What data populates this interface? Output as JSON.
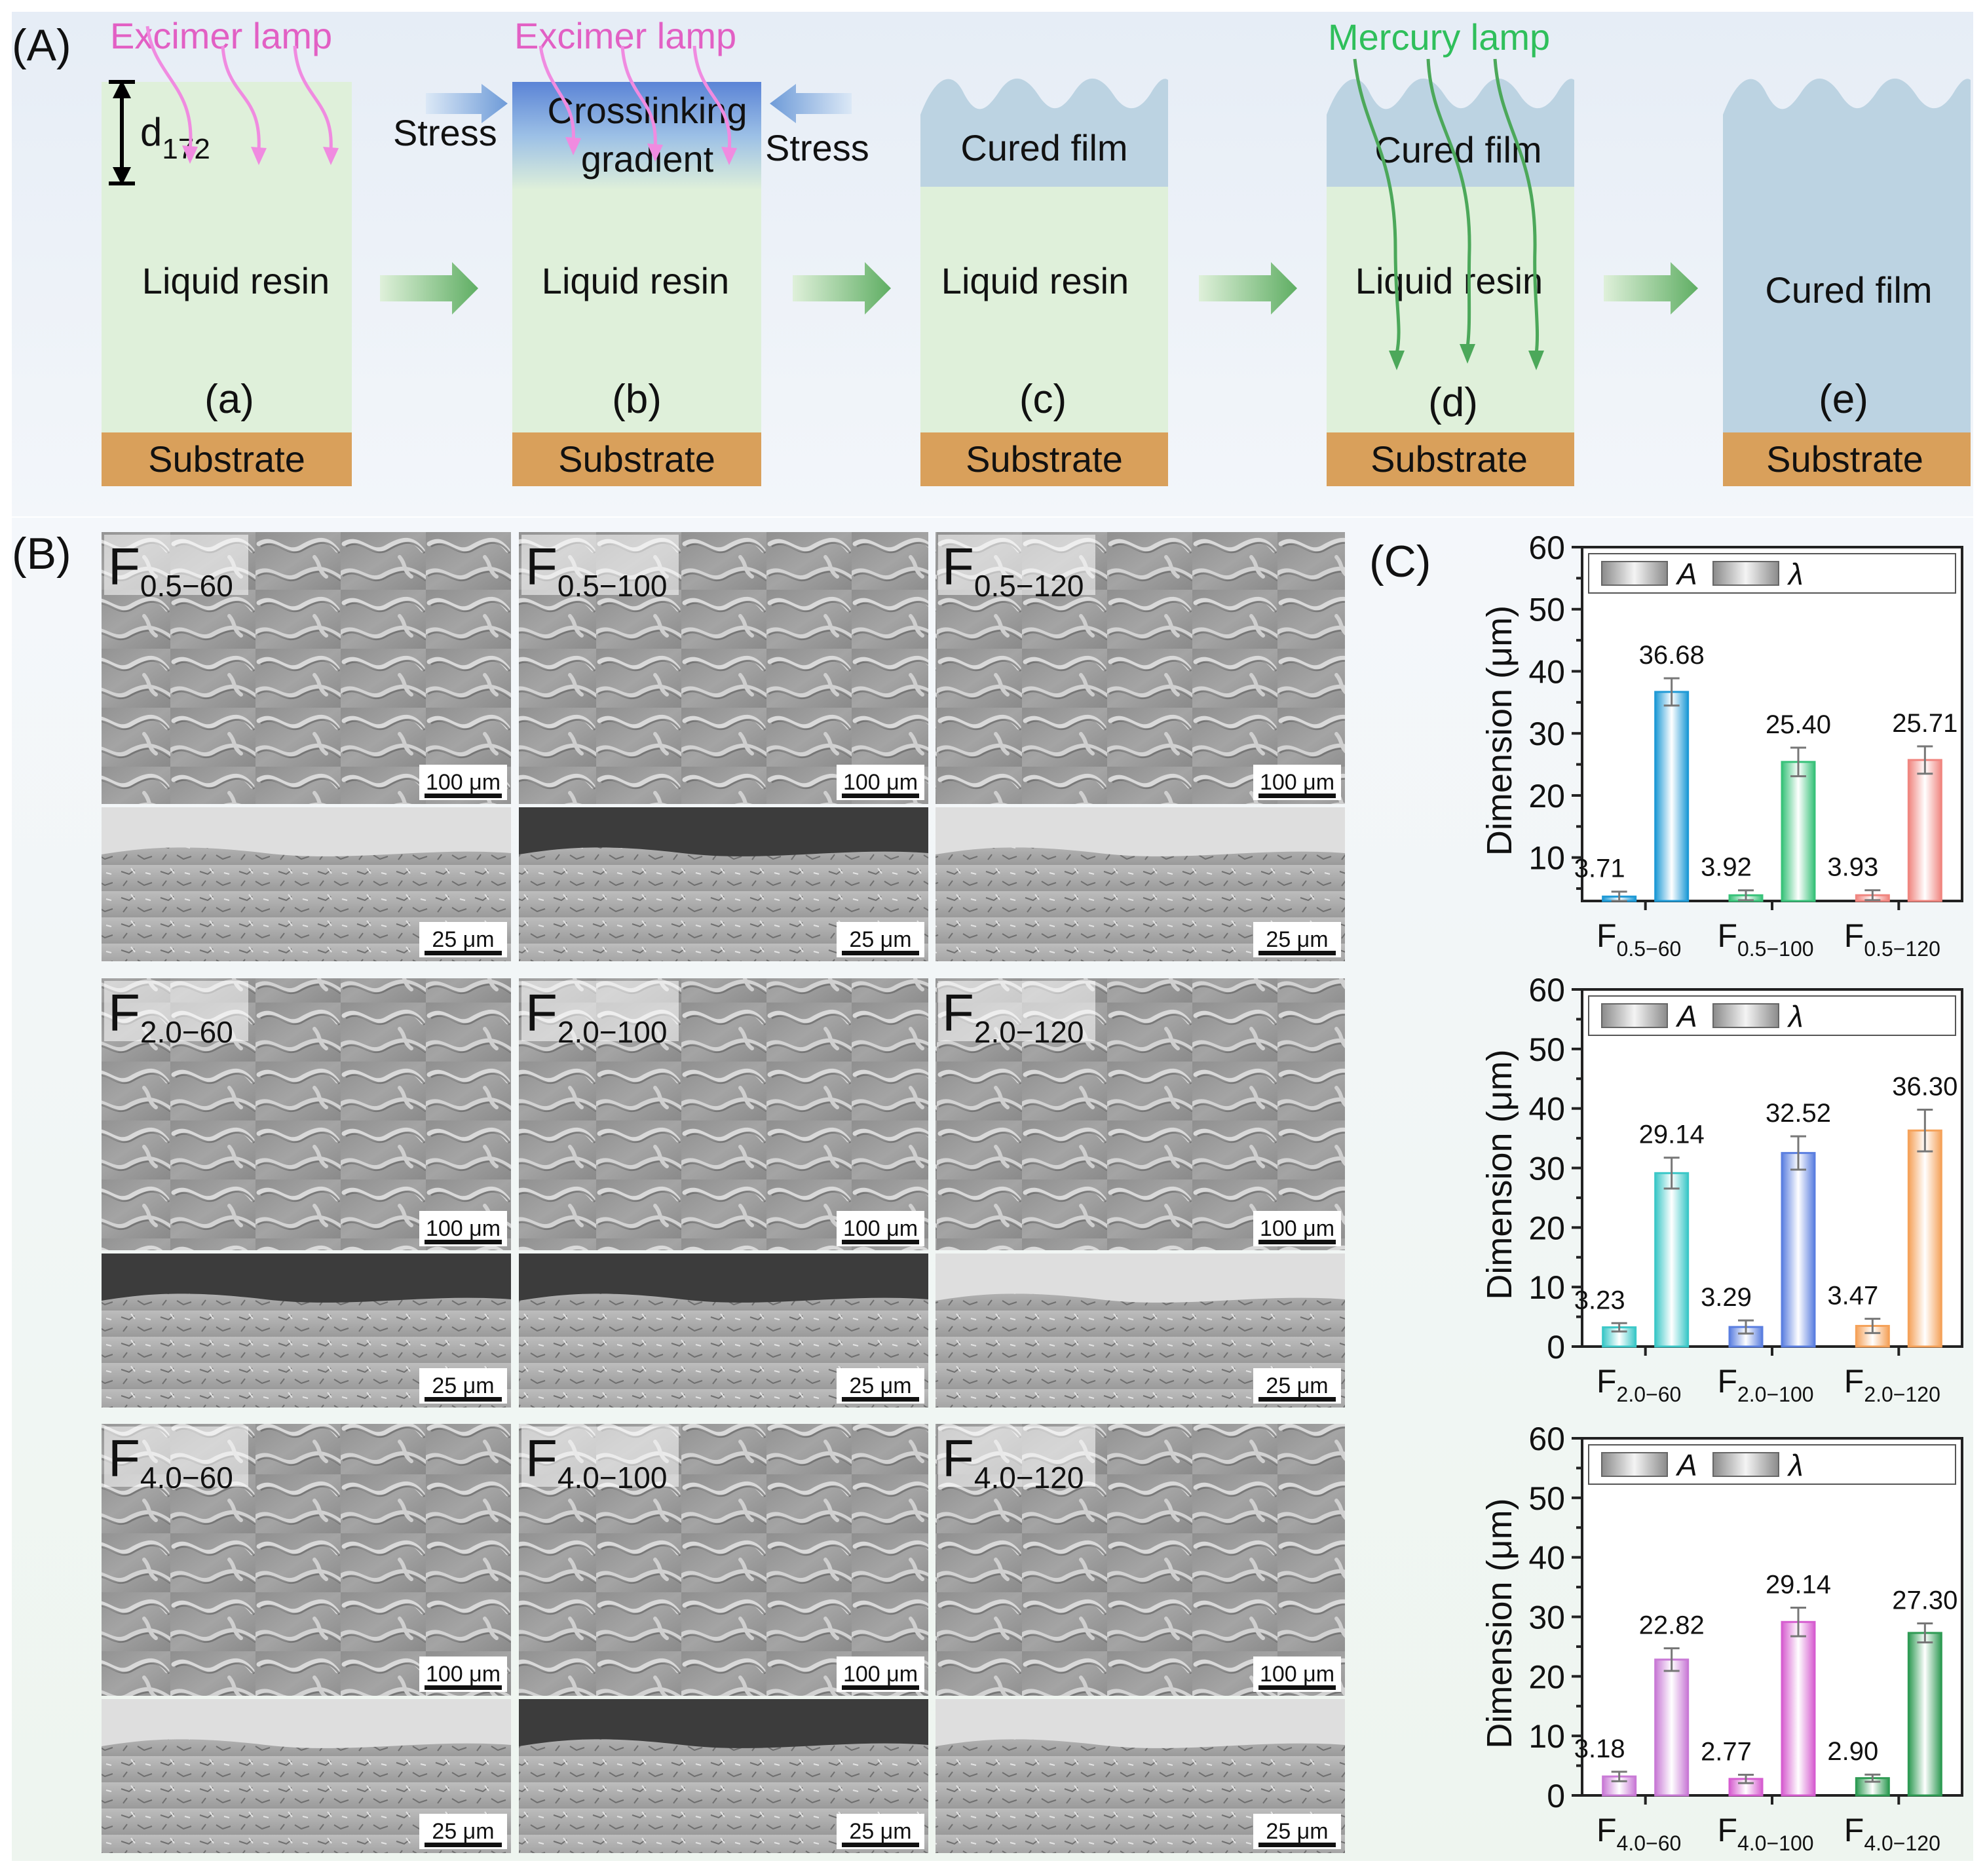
{
  "colors": {
    "liquid": "#dff0da",
    "cured": "#bcd3e2",
    "substrate": "#d9a05b",
    "excimer": "#e260c4",
    "mercury": "#2fbf5b",
    "arrow_green": "#4ca85a"
  },
  "panel_a": {
    "label": "(A)",
    "excimer_label": "Excimer lamp",
    "mercury_label": "Mercury lamp",
    "depth_label": "d",
    "depth_sub": "172",
    "stress_label": "Stress",
    "crosslink_line1": "Crosslinking",
    "crosslink_line2": "gradient",
    "liquid_resin": "Liquid resin",
    "cured_film": "Cured film",
    "substrate": "Substrate",
    "steps": [
      "(a)",
      "(b)",
      "(c)",
      "(d)",
      "(e)"
    ]
  },
  "panel_b": {
    "label": "(B)",
    "scale_top": "100 μm",
    "scale_bottom": "25 μm",
    "rows": [
      {
        "samples": [
          {
            "main": "F",
            "sub": "0.5−60"
          },
          {
            "main": "F",
            "sub": "0.5−100"
          },
          {
            "main": "F",
            "sub": "0.5−120"
          }
        ]
      },
      {
        "samples": [
          {
            "main": "F",
            "sub": "2.0−60"
          },
          {
            "main": "F",
            "sub": "2.0−100"
          },
          {
            "main": "F",
            "sub": "2.0−120"
          }
        ]
      },
      {
        "samples": [
          {
            "main": "F",
            "sub": "4.0−60"
          },
          {
            "main": "F",
            "sub": "4.0−100"
          },
          {
            "main": "F",
            "sub": "4.0−120"
          }
        ]
      }
    ]
  },
  "panel_c": {
    "label": "(C)",
    "ylabel": "Dimension (μm)",
    "legend_a": "A",
    "legend_lambda": "λ",
    "yticks": [
      "60",
      "50",
      "40",
      "30",
      "20",
      "10",
      "0"
    ]
  },
  "chart_data": [
    {
      "type": "bar",
      "title": "",
      "ylabel": "Dimension (μm)",
      "ylim": [
        3,
        60
      ],
      "categories": [
        {
          "main": "F",
          "sub": "0.5−60"
        },
        {
          "main": "F",
          "sub": "0.5−100"
        },
        {
          "main": "F",
          "sub": "0.5−120"
        }
      ],
      "series": [
        {
          "name": "A",
          "values": [
            3.71,
            3.92,
            3.93
          ],
          "labels": [
            "3.71",
            "3.92",
            "3.93"
          ],
          "errors": [
            0.8,
            0.8,
            0.8
          ]
        },
        {
          "name": "λ",
          "values": [
            36.68,
            25.4,
            25.71
          ],
          "labels": [
            "36.68",
            "25.40",
            "25.71"
          ],
          "errors": [
            2.2,
            2.3,
            2.2
          ]
        }
      ],
      "bar_colors": [
        "#1f9ad6",
        "#39c27a",
        "#f08680"
      ]
    },
    {
      "type": "bar",
      "title": "",
      "ylabel": "Dimension (μm)",
      "ylim": [
        0,
        60
      ],
      "categories": [
        {
          "main": "F",
          "sub": "2.0−60"
        },
        {
          "main": "F",
          "sub": "2.0−100"
        },
        {
          "main": "F",
          "sub": "2.0−120"
        }
      ],
      "series": [
        {
          "name": "A",
          "values": [
            3.23,
            3.29,
            3.47
          ],
          "labels": [
            "3.23",
            "3.29",
            "3.47"
          ],
          "errors": [
            0.7,
            1.1,
            1.2
          ]
        },
        {
          "name": "λ",
          "values": [
            29.14,
            32.52,
            36.3
          ],
          "labels": [
            "29.14",
            "32.52",
            "36.30"
          ],
          "errors": [
            2.6,
            2.8,
            3.5
          ]
        }
      ],
      "bar_colors": [
        "#3cc8c8",
        "#5b7fe0",
        "#f5a25a"
      ]
    },
    {
      "type": "bar",
      "title": "",
      "ylabel": "Dimension (μm)",
      "ylim": [
        0,
        60
      ],
      "categories": [
        {
          "main": "F",
          "sub": "4.0−60"
        },
        {
          "main": "F",
          "sub": "4.0−100"
        },
        {
          "main": "F",
          "sub": "4.0−120"
        }
      ],
      "series": [
        {
          "name": "A",
          "values": [
            3.18,
            2.77,
            2.9
          ],
          "labels": [
            "3.18",
            "2.77",
            "2.90"
          ],
          "errors": [
            0.8,
            0.7,
            0.6
          ]
        },
        {
          "name": "λ",
          "values": [
            22.82,
            29.14,
            27.3
          ],
          "labels": [
            "22.82",
            "29.14",
            "27.30"
          ],
          "errors": [
            1.9,
            2.4,
            1.6
          ]
        }
      ],
      "bar_colors": [
        "#c97ad6",
        "#d65ed0",
        "#2f9b54"
      ]
    }
  ]
}
